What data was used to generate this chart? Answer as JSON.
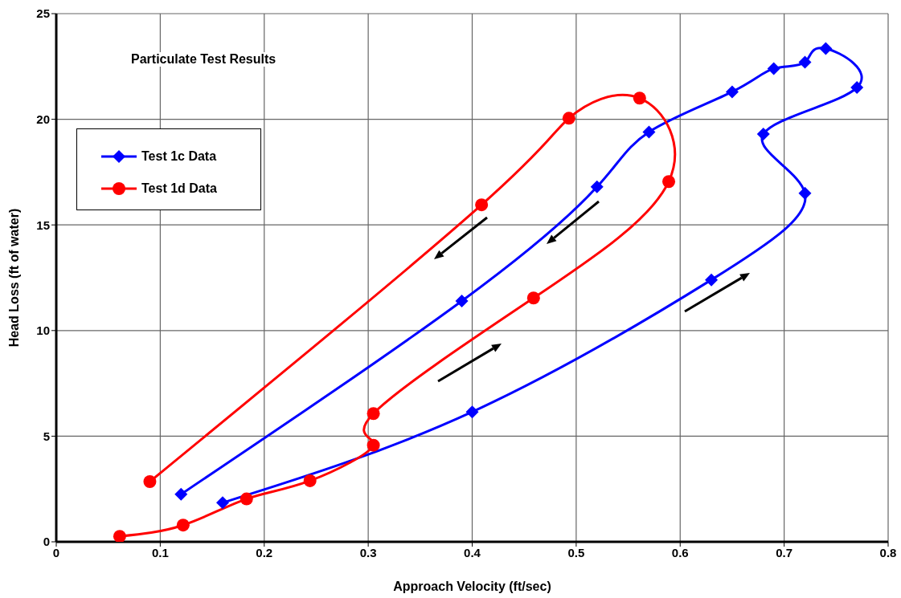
{
  "chart_data": {
    "type": "line",
    "title": "Particulate Test Results",
    "xlabel": "Approach Velocity (ft/sec)",
    "ylabel": "Head Loss (ft of water)",
    "xlim": [
      0,
      0.8
    ],
    "xticks": [
      0,
      0.1,
      0.2,
      0.3,
      0.4,
      0.5,
      0.6,
      0.7,
      0.8
    ],
    "ylim": [
      0,
      25
    ],
    "yticks": [
      0,
      5,
      10,
      15,
      20,
      25
    ],
    "grid": true,
    "legend": "top left",
    "line_style": "solid",
    "series": [
      {
        "name": "Test 1c Data",
        "color": "#0000ff",
        "marker": "diamond",
        "x": [
          0.16,
          0.4,
          0.63,
          0.72,
          0.68,
          0.77,
          0.74,
          0.72,
          0.69,
          0.65,
          0.57,
          0.52,
          0.39,
          0.12
        ],
        "values": [
          1.85,
          6.15,
          12.4,
          16.5,
          19.3,
          21.5,
          23.35,
          22.7,
          22.4,
          21.3,
          19.4,
          16.8,
          11.4,
          2.25
        ]
      },
      {
        "name": "Test 1d Data",
        "color": "#ff0000",
        "marker": "circle",
        "x": [
          0.061,
          0.122,
          0.183,
          0.244,
          0.305,
          0.305,
          0.459,
          0.589,
          0.561,
          0.493,
          0.409,
          0.09
        ],
        "values": [
          0.26,
          0.79,
          2.03,
          2.89,
          4.57,
          6.07,
          11.54,
          17.05,
          21.0,
          20.05,
          15.95,
          2.85
        ]
      }
    ]
  }
}
